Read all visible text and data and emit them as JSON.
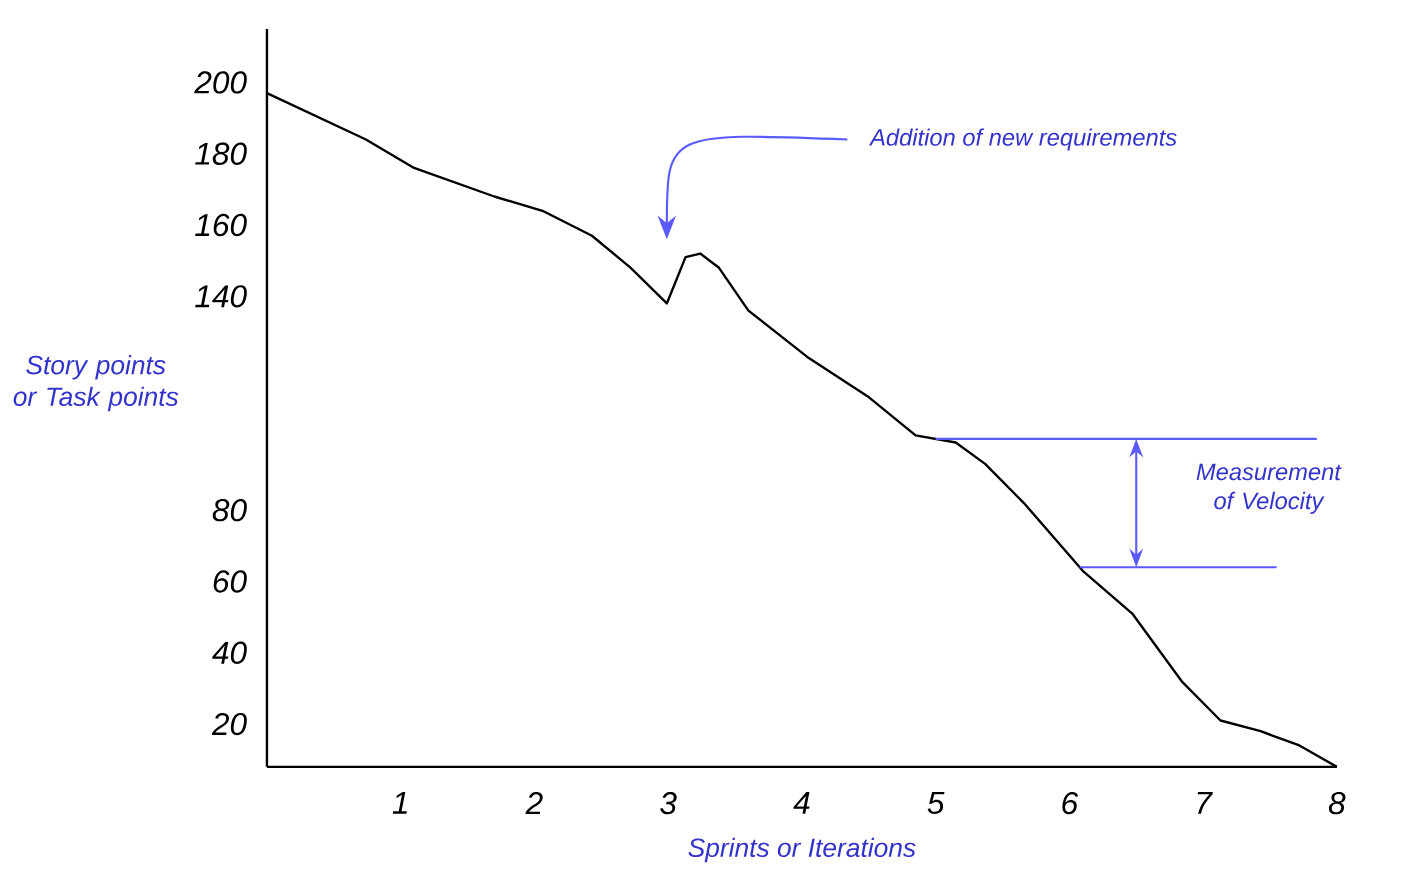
{
  "chart_data": {
    "type": "line",
    "xlabel": "Sprints or Iterations",
    "ylabel": "Story points or Task points",
    "xlim": [
      0,
      8
    ],
    "ylim": [
      8,
      215
    ],
    "xticks": [
      1,
      2,
      3,
      4,
      5,
      6,
      7,
      8
    ],
    "yticks": [
      20,
      40,
      60,
      80,
      140,
      160,
      180,
      200
    ],
    "series": [
      {
        "color": "#000000",
        "x": [
          0,
          0.74,
          1.1,
          1.7,
          2.06,
          2.43,
          2.72,
          2.99,
          3.13,
          3.24,
          3.38,
          3.6,
          4.04,
          4.49,
          4.85,
          5.15,
          5.37,
          5.66,
          6.1,
          6.47,
          6.84,
          7.13,
          7.43,
          7.72,
          8
        ],
        "values": [
          197,
          184,
          176,
          168,
          164,
          157,
          148,
          138,
          151,
          152,
          148,
          136,
          123,
          112,
          101,
          99,
          93,
          82,
          63,
          51,
          32,
          21,
          18,
          14,
          8
        ]
      }
    ],
    "ref_lines": [
      {
        "axis": "y",
        "value": 100,
        "color": "#5a5aff"
      },
      {
        "axis": "y",
        "value": 64,
        "color": "#5a5aff"
      }
    ],
    "annotations": [
      "Addition of new requirements",
      "Measurement of Velocity"
    ],
    "grid": false,
    "marker": "none",
    "line_style": "solid"
  }
}
